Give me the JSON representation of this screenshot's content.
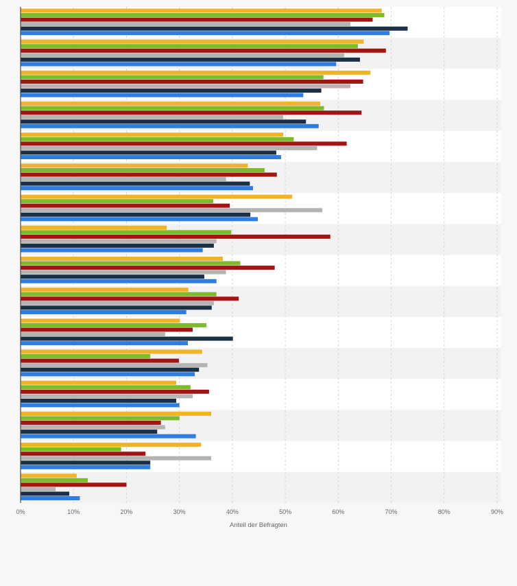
{
  "chart_data": {
    "type": "bar",
    "orientation": "horizontal",
    "xlabel": "Anteil der Befragten",
    "xlim": [
      0,
      90
    ],
    "x_ticks": [
      "0%",
      "10%",
      "20%",
      "30%",
      "40%",
      "50%",
      "60%",
      "70%",
      "80%",
      "90%"
    ],
    "grid": true,
    "legend": "none",
    "categories": [
      "",
      "",
      "",
      "",
      "",
      "",
      "",
      "",
      "",
      "",
      "",
      "",
      "",
      "",
      "",
      ""
    ],
    "series": [
      {
        "color": "#f0b429",
        "values": [
          68.2,
          64.8,
          66.1,
          56.6,
          49.6,
          42.9,
          51.3,
          27.6,
          38.2,
          31.7,
          30.1,
          34.3,
          29.4,
          36.0,
          34.1,
          10.6
        ]
      },
      {
        "color": "#7cbb2a",
        "values": [
          68.7,
          63.7,
          57.2,
          57.3,
          51.6,
          46.1,
          36.4,
          39.8,
          41.5,
          37.0,
          35.1,
          24.5,
          32.1,
          30.0,
          19.0,
          12.7
        ]
      },
      {
        "color": "#a31515",
        "values": [
          66.5,
          69.0,
          64.7,
          64.4,
          61.6,
          48.4,
          39.5,
          58.5,
          48.0,
          41.2,
          32.5,
          29.9,
          35.6,
          26.5,
          23.6,
          20.0
        ]
      },
      {
        "color": "#b4b4b4",
        "values": [
          62.3,
          61.1,
          62.3,
          49.6,
          56.0,
          38.8,
          57.0,
          37.0,
          38.8,
          36.5,
          27.3,
          35.3,
          32.5,
          27.3,
          36.0,
          6.6
        ]
      },
      {
        "color": "#1b2f45",
        "values": [
          73.1,
          64.1,
          56.8,
          53.9,
          48.3,
          43.3,
          43.4,
          36.5,
          34.7,
          36.1,
          40.1,
          33.7,
          29.4,
          25.8,
          24.5,
          9.2
        ]
      },
      {
        "color": "#2f7de1",
        "values": [
          69.7,
          59.6,
          53.4,
          56.3,
          49.2,
          43.9,
          44.8,
          34.4,
          37.0,
          31.3,
          31.6,
          32.9,
          30.0,
          33.1,
          24.5,
          11.2
        ]
      }
    ]
  }
}
